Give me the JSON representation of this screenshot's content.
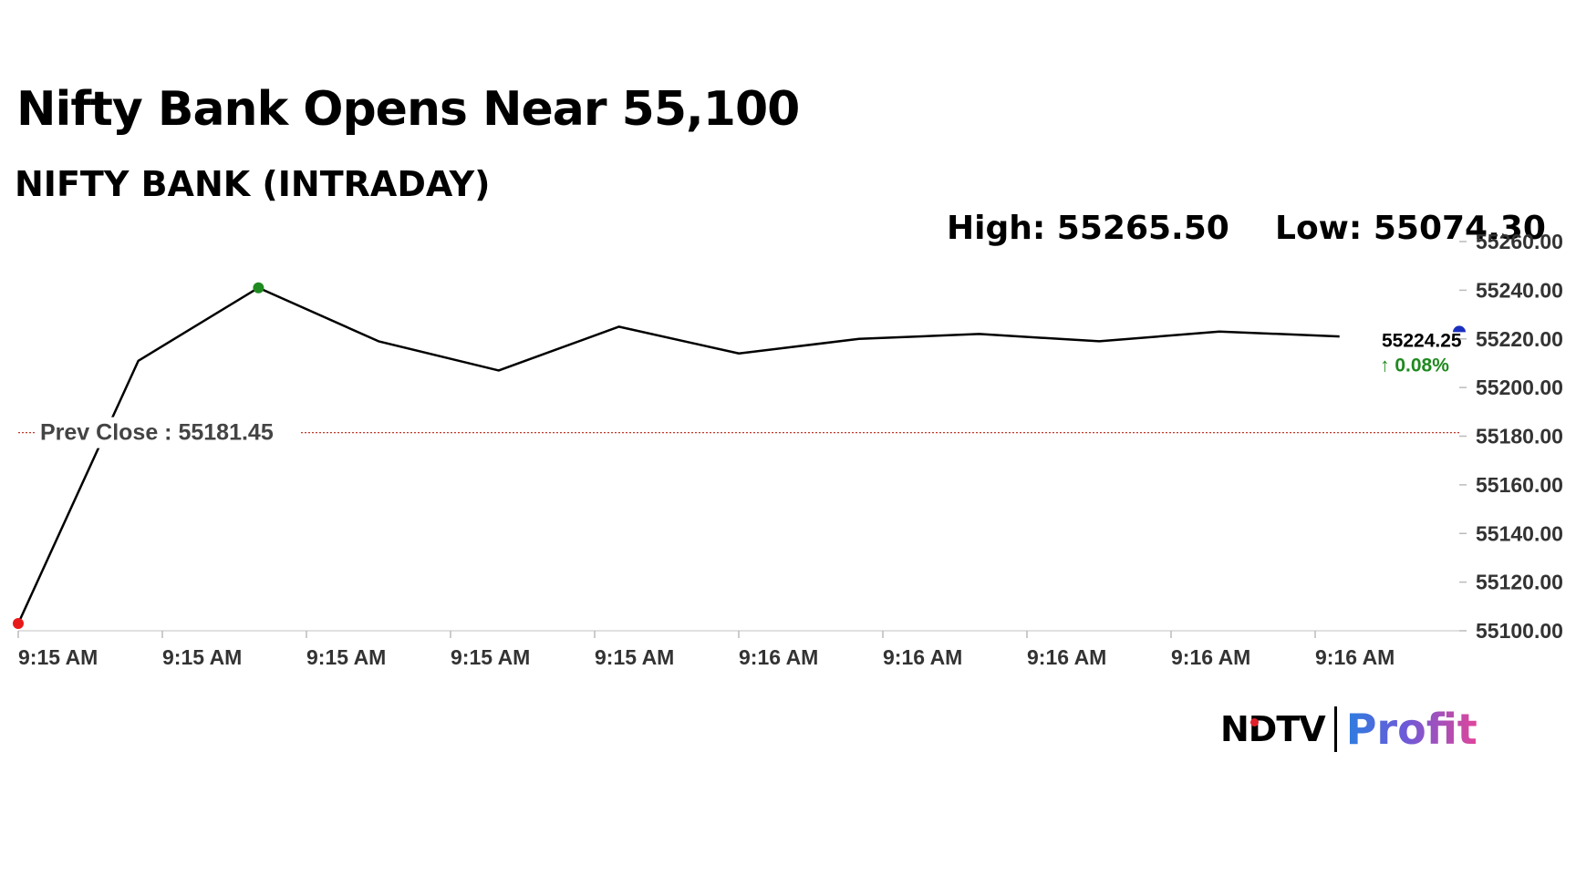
{
  "headline": "Nifty Bank Opens Near 55,100",
  "chart_data": {
    "type": "line",
    "title": "NIFTY BANK (INTRADAY)",
    "high_label": "High: 55265.50",
    "low_label": "Low: 55074.30",
    "ylim": [
      55100,
      55260
    ],
    "y_ticks": [
      "55100.00",
      "55120.00",
      "55140.00",
      "55160.00",
      "55180.00",
      "55200.00",
      "55220.00",
      "55240.00",
      "55260.00"
    ],
    "x_ticks": [
      "9:15 AM",
      "9:15 AM",
      "9:15 AM",
      "9:15 AM",
      "9:15 AM",
      "9:16 AM",
      "9:16 AM",
      "9:16 AM",
      "9:16 AM",
      "9:16 AM"
    ],
    "values": [
      55103,
      55211,
      55241,
      55219,
      55207,
      55225,
      55214,
      55220,
      55222,
      55219,
      55223,
      55221
    ],
    "prev_close_label": "Prev Close : 55181.45",
    "prev_close": 55181.45,
    "last_value": "55224.25",
    "last_value_num": 55224.25,
    "change_label": "↑ 0.08%",
    "grid": false,
    "colors": {
      "line": "#000000",
      "prev_close": "#c0392b",
      "low_marker": "#e8191a",
      "high_marker": "#1f8a1f",
      "last_marker": "#1a2fbf",
      "change": "#1f8a1f"
    }
  },
  "logo": {
    "ndtv": "NDTV",
    "profit": "Profit"
  }
}
